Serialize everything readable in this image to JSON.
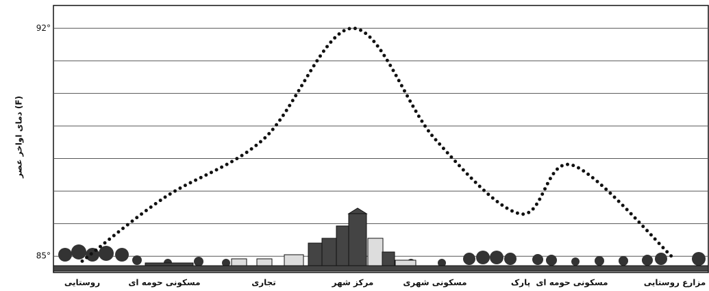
{
  "chart_data": {
    "type": "line",
    "y_label": "دمای اواخر عصر (F)",
    "categories": [
      "روستایی",
      "مسکونی حومه ای",
      "تجاری",
      "مرکز شهر",
      "مسکونی شهری",
      "پارک",
      "مسکونی حومه ای",
      "مزارع روستایی"
    ],
    "values": [
      84.85,
      86.8,
      88.6,
      92,
      88.6,
      86.3,
      87.8,
      84.9
    ],
    "color": "#111111",
    "ylim": [
      84.5,
      92.7
    ],
    "yticks": [
      {
        "value": 85,
        "label": "85°"
      },
      {
        "value": 92,
        "label": "92°"
      }
    ],
    "minor_yticks": [
      86,
      87,
      88,
      89,
      90,
      91
    ],
    "grid": true
  }
}
